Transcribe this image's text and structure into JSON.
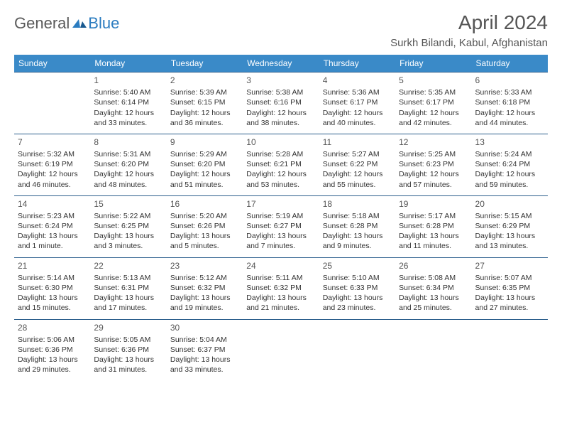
{
  "logo": {
    "general": "General",
    "blue": "Blue"
  },
  "title": "April 2024",
  "location": "Surkh Bilandi, Kabul, Afghanistan",
  "colors": {
    "header_bg": "#3a8ac8",
    "header_text": "#ffffff",
    "border": "#2c5f8d",
    "text": "#333333",
    "logo_gray": "#5a5a5a",
    "logo_blue": "#2b7cc0"
  },
  "weekdays": [
    "Sunday",
    "Monday",
    "Tuesday",
    "Wednesday",
    "Thursday",
    "Friday",
    "Saturday"
  ],
  "weeks": [
    [
      null,
      {
        "n": "1",
        "sr": "5:40 AM",
        "ss": "6:14 PM",
        "dl": "12 hours and 33 minutes."
      },
      {
        "n": "2",
        "sr": "5:39 AM",
        "ss": "6:15 PM",
        "dl": "12 hours and 36 minutes."
      },
      {
        "n": "3",
        "sr": "5:38 AM",
        "ss": "6:16 PM",
        "dl": "12 hours and 38 minutes."
      },
      {
        "n": "4",
        "sr": "5:36 AM",
        "ss": "6:17 PM",
        "dl": "12 hours and 40 minutes."
      },
      {
        "n": "5",
        "sr": "5:35 AM",
        "ss": "6:17 PM",
        "dl": "12 hours and 42 minutes."
      },
      {
        "n": "6",
        "sr": "5:33 AM",
        "ss": "6:18 PM",
        "dl": "12 hours and 44 minutes."
      }
    ],
    [
      {
        "n": "7",
        "sr": "5:32 AM",
        "ss": "6:19 PM",
        "dl": "12 hours and 46 minutes."
      },
      {
        "n": "8",
        "sr": "5:31 AM",
        "ss": "6:20 PM",
        "dl": "12 hours and 48 minutes."
      },
      {
        "n": "9",
        "sr": "5:29 AM",
        "ss": "6:20 PM",
        "dl": "12 hours and 51 minutes."
      },
      {
        "n": "10",
        "sr": "5:28 AM",
        "ss": "6:21 PM",
        "dl": "12 hours and 53 minutes."
      },
      {
        "n": "11",
        "sr": "5:27 AM",
        "ss": "6:22 PM",
        "dl": "12 hours and 55 minutes."
      },
      {
        "n": "12",
        "sr": "5:25 AM",
        "ss": "6:23 PM",
        "dl": "12 hours and 57 minutes."
      },
      {
        "n": "13",
        "sr": "5:24 AM",
        "ss": "6:24 PM",
        "dl": "12 hours and 59 minutes."
      }
    ],
    [
      {
        "n": "14",
        "sr": "5:23 AM",
        "ss": "6:24 PM",
        "dl": "13 hours and 1 minute."
      },
      {
        "n": "15",
        "sr": "5:22 AM",
        "ss": "6:25 PM",
        "dl": "13 hours and 3 minutes."
      },
      {
        "n": "16",
        "sr": "5:20 AM",
        "ss": "6:26 PM",
        "dl": "13 hours and 5 minutes."
      },
      {
        "n": "17",
        "sr": "5:19 AM",
        "ss": "6:27 PM",
        "dl": "13 hours and 7 minutes."
      },
      {
        "n": "18",
        "sr": "5:18 AM",
        "ss": "6:28 PM",
        "dl": "13 hours and 9 minutes."
      },
      {
        "n": "19",
        "sr": "5:17 AM",
        "ss": "6:28 PM",
        "dl": "13 hours and 11 minutes."
      },
      {
        "n": "20",
        "sr": "5:15 AM",
        "ss": "6:29 PM",
        "dl": "13 hours and 13 minutes."
      }
    ],
    [
      {
        "n": "21",
        "sr": "5:14 AM",
        "ss": "6:30 PM",
        "dl": "13 hours and 15 minutes."
      },
      {
        "n": "22",
        "sr": "5:13 AM",
        "ss": "6:31 PM",
        "dl": "13 hours and 17 minutes."
      },
      {
        "n": "23",
        "sr": "5:12 AM",
        "ss": "6:32 PM",
        "dl": "13 hours and 19 minutes."
      },
      {
        "n": "24",
        "sr": "5:11 AM",
        "ss": "6:32 PM",
        "dl": "13 hours and 21 minutes."
      },
      {
        "n": "25",
        "sr": "5:10 AM",
        "ss": "6:33 PM",
        "dl": "13 hours and 23 minutes."
      },
      {
        "n": "26",
        "sr": "5:08 AM",
        "ss": "6:34 PM",
        "dl": "13 hours and 25 minutes."
      },
      {
        "n": "27",
        "sr": "5:07 AM",
        "ss": "6:35 PM",
        "dl": "13 hours and 27 minutes."
      }
    ],
    [
      {
        "n": "28",
        "sr": "5:06 AM",
        "ss": "6:36 PM",
        "dl": "13 hours and 29 minutes."
      },
      {
        "n": "29",
        "sr": "5:05 AM",
        "ss": "6:36 PM",
        "dl": "13 hours and 31 minutes."
      },
      {
        "n": "30",
        "sr": "5:04 AM",
        "ss": "6:37 PM",
        "dl": "13 hours and 33 minutes."
      },
      null,
      null,
      null,
      null
    ]
  ],
  "labels": {
    "sunrise": "Sunrise:",
    "sunset": "Sunset:",
    "daylight": "Daylight:"
  }
}
